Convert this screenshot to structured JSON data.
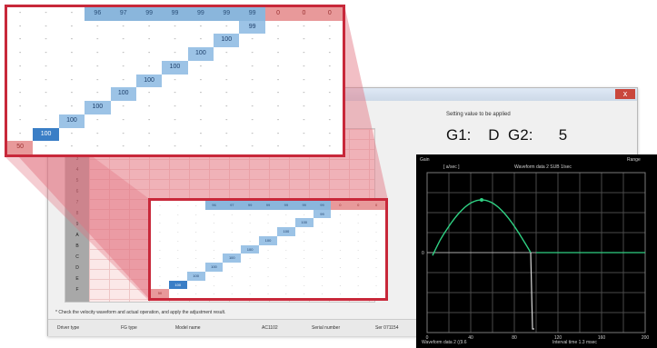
{
  "window": {
    "close_label": "x",
    "setting_title": "Setting value to be applied",
    "gain_text": "G1:    D  G2:      5",
    "footnote": "* Check the velocity waveform and actual operation, and apply the adjustment result.",
    "status": [
      "Driver type",
      "FG type",
      "Model name",
      "AC1102",
      "Serial number",
      "Ser 071154"
    ],
    "row_labels": [
      "1",
      "2",
      "3",
      "4",
      "5",
      "6",
      "7",
      "8",
      "9",
      "A",
      "B",
      "C",
      "D",
      "E",
      "F"
    ]
  },
  "zoom_table": {
    "header_blue": [
      "96",
      "97",
      "99",
      "99",
      "99",
      "99",
      "99"
    ],
    "header_red": [
      "0",
      "0",
      "0"
    ],
    "diagonal": [
      "100",
      "100",
      "100",
      "100",
      "100",
      "100",
      "100",
      "100",
      "99"
    ],
    "corner": "50",
    "placeholder": "-"
  },
  "scope": {
    "top_left_label": "Gain",
    "header_left": "[ a/sec ]",
    "header_right": "Waveform data 2  SUB 1/sec",
    "top_right_label": "Range",
    "footer_left": "Waveform data 2  ((9.6",
    "footer_right": "Interval time  1.3 msec",
    "tick_labels": [
      "0",
      "40",
      "80",
      "120",
      "160",
      "200"
    ],
    "colors": {
      "trace": "#2fcf82",
      "grid": "#4a4a4a",
      "baseline": "#ffffff",
      "step": "#d9d9d9"
    }
  }
}
